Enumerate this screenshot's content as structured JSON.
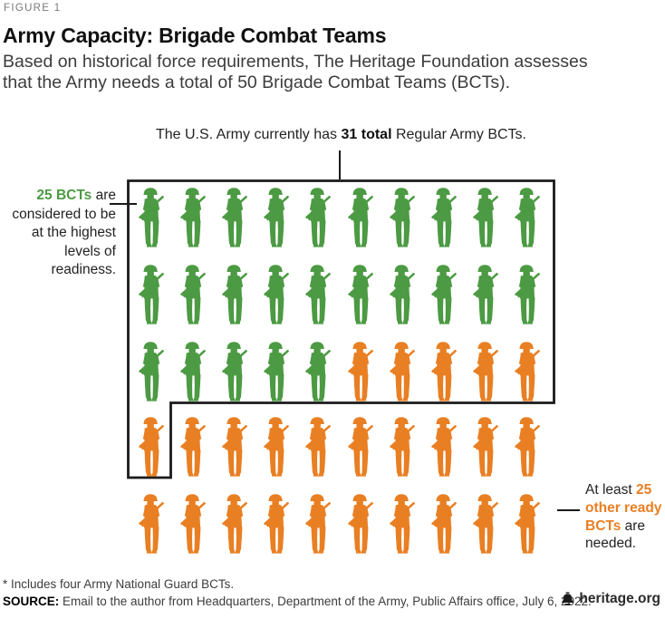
{
  "header": {
    "figure_label": "FIGURE 1",
    "title": "Army Capacity: Brigade Combat Teams",
    "subtitle": "Based on historical force requirements, The Heritage Foundation assesses that the Army needs a total of 50 Brigade Combat Teams (BCTs)."
  },
  "annotations": {
    "top": {
      "prefix": "The U.S. Army currently has ",
      "bold": "31 total",
      "suffix": " Regular Army BCTs."
    },
    "left": {
      "bold": "25 BCTs",
      "rest": " are considered to be at the highest levels of readiness."
    },
    "right": {
      "prefix": "At least ",
      "bold": "25 other ready BCTs",
      "suffix": " are needed."
    }
  },
  "footer": {
    "footnote": "* Includes four Army National Guard BCTs.",
    "source_label": "SOURCE:",
    "source_text": " Email to the author from Headquarters, Department of the Army, Public Affairs office, July 6, 2022.",
    "brand": "heritage.org",
    "brand_icon": "liberty-bell-icon"
  },
  "chart_data": {
    "type": "pictogram",
    "title": "Army Capacity: Brigade Combat Teams",
    "total_figures": 50,
    "grid": {
      "rows": 5,
      "cols": 10
    },
    "series": [
      {
        "name": "BCTs at highest levels of readiness",
        "color_key": "green",
        "value": 25
      },
      {
        "name": "Other ready BCTs needed",
        "color_key": "orange",
        "value": 25
      }
    ],
    "boxed_group": {
      "name": "Total current Regular Army BCTs",
      "value": 31
    },
    "rows": [
      [
        "green",
        "green",
        "green",
        "green",
        "green",
        "green",
        "green",
        "green",
        "green",
        "green"
      ],
      [
        "green",
        "green",
        "green",
        "green",
        "green",
        "green",
        "green",
        "green",
        "green",
        "green"
      ],
      [
        "green",
        "green",
        "green",
        "green",
        "green",
        "orange",
        "orange",
        "orange",
        "orange",
        "orange"
      ],
      [
        "orange",
        "orange",
        "orange",
        "orange",
        "orange",
        "orange",
        "orange",
        "orange",
        "orange",
        "orange"
      ],
      [
        "orange",
        "orange",
        "orange",
        "orange",
        "orange",
        "orange",
        "orange",
        "orange",
        "orange",
        "orange"
      ]
    ],
    "colors": {
      "green": "#4C9A43",
      "orange": "#E97F23"
    }
  }
}
